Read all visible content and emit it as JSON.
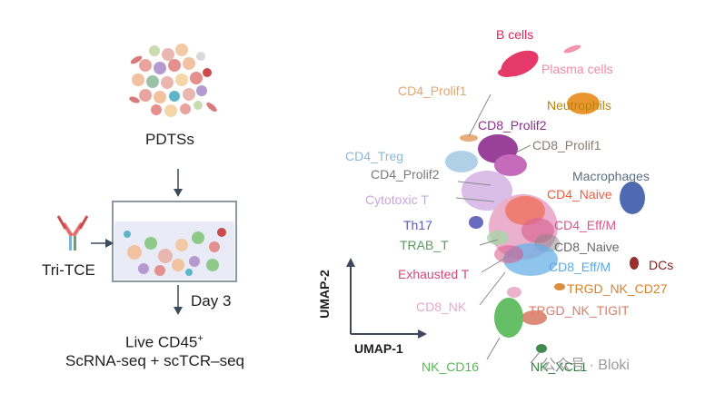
{
  "left": {
    "pdtss_label": "PDTSs",
    "tri_tce_label": "Tri-TCE",
    "day_label": "Day 3",
    "live_label": "Live CD45",
    "live_sup": "+",
    "seq_label": "ScRNA-seq + scTCR–seq"
  },
  "umap": {
    "axis_y": "UMAP-2",
    "axis_x": "UMAP-1",
    "clusters": [
      {
        "name": "B cells",
        "color": "#e3245a"
      },
      {
        "name": "Plasma cells",
        "color": "#f28aa8"
      },
      {
        "name": "CD4_Prolif1",
        "color": "#e8a46a"
      },
      {
        "name": "Neutrophils",
        "color": "#b8860b"
      },
      {
        "name": "CD8_Prolif2",
        "color": "#8e2c8e"
      },
      {
        "name": "CD8_Prolif1",
        "color": "#8a7a70"
      },
      {
        "name": "CD4_Treg",
        "color": "#8ab8d8"
      },
      {
        "name": "CD4_Prolif2",
        "color": "#7a7a7a"
      },
      {
        "name": "Macrophages",
        "color": "#5a6e80"
      },
      {
        "name": "Cytotoxic T",
        "color": "#c9a6d9"
      },
      {
        "name": "CD4_Naive",
        "color": "#f05a3c"
      },
      {
        "name": "Th17",
        "color": "#5a5ab8"
      },
      {
        "name": "CD4_Eff/M",
        "color": "#d9578a"
      },
      {
        "name": "TRAB_T",
        "color": "#5e9a5e"
      },
      {
        "name": "CD8_Naive",
        "color": "#666666"
      },
      {
        "name": "DCs",
        "color": "#8b1a1a"
      },
      {
        "name": "Exhausted T",
        "color": "#d4477a"
      },
      {
        "name": "CD8_Eff/M",
        "color": "#5aa9e6"
      },
      {
        "name": "TRGD_NK_CD27",
        "color": "#d9822b"
      },
      {
        "name": "CD8_NK",
        "color": "#e8aac8"
      },
      {
        "name": "TRGD_NK_TIGIT",
        "color": "#d9806a"
      },
      {
        "name": "NK_CD16",
        "color": "#56b856"
      },
      {
        "name": "NK_XCL1",
        "color": "#2f7d3a"
      }
    ]
  },
  "watermark": "公众号 · Bloki"
}
